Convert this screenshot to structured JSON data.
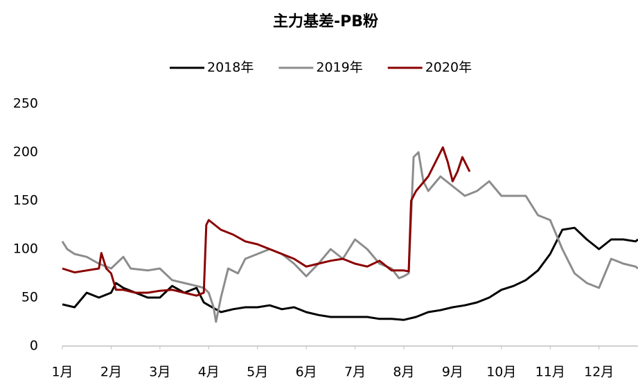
{
  "chart_data": {
    "type": "line",
    "title": "主力基差-PB粉",
    "xlim": [
      1,
      12.8
    ],
    "xticks": [
      {
        "value": 1,
        "label": "1月"
      },
      {
        "value": 2,
        "label": "2月"
      },
      {
        "value": 3,
        "label": "3月"
      },
      {
        "value": 4,
        "label": "4月"
      },
      {
        "value": 5,
        "label": "5月"
      },
      {
        "value": 6,
        "label": "6月"
      },
      {
        "value": 7,
        "label": "7月"
      },
      {
        "value": 8,
        "label": "8月"
      },
      {
        "value": 9,
        "label": "9月"
      },
      {
        "value": 10,
        "label": "10月"
      },
      {
        "value": 11,
        "label": "11月"
      },
      {
        "value": 12,
        "label": "12月"
      }
    ],
    "ylim": [
      0,
      250
    ],
    "yticks": [
      0,
      50,
      100,
      150,
      200,
      250
    ],
    "grid": false,
    "legend": "top",
    "series": [
      {
        "name": "2018年",
        "color": "#000000",
        "x": [
          1,
          1.25,
          1.5,
          1.75,
          2,
          2.1,
          2.25,
          2.5,
          2.75,
          3,
          3.25,
          3.5,
          3.75,
          3.9,
          4,
          4.25,
          4.5,
          4.75,
          5,
          5.25,
          5.5,
          5.75,
          6,
          6.25,
          6.5,
          6.75,
          7,
          7.25,
          7.5,
          7.75,
          8,
          8.25,
          8.5,
          8.75,
          9,
          9.25,
          9.5,
          9.75,
          10,
          10.25,
          10.5,
          10.75,
          11,
          11.25,
          11.5,
          11.75,
          12,
          12.25,
          12.5,
          12.75,
          12.8
        ],
        "values": [
          43,
          40,
          55,
          50,
          55,
          65,
          60,
          55,
          50,
          50,
          62,
          55,
          60,
          45,
          42,
          35,
          38,
          40,
          40,
          42,
          38,
          40,
          35,
          32,
          30,
          30,
          30,
          30,
          28,
          28,
          27,
          30,
          35,
          37,
          40,
          42,
          45,
          50,
          58,
          62,
          68,
          78,
          95,
          120,
          122,
          110,
          100,
          110,
          110,
          108,
          110
        ]
      },
      {
        "name": "2019年",
        "color": "#8c8c8c",
        "x": [
          1,
          1.1,
          1.25,
          1.5,
          1.75,
          2,
          2.25,
          2.4,
          2.75,
          3,
          3.25,
          3.5,
          3.75,
          3.9,
          4,
          4.1,
          4.15,
          4.25,
          4.4,
          4.6,
          4.75,
          5,
          5.25,
          5.5,
          5.75,
          6,
          6.25,
          6.5,
          6.75,
          7,
          7.25,
          7.5,
          7.75,
          7.9,
          8,
          8.1,
          8.2,
          8.3,
          8.4,
          8.5,
          8.75,
          9,
          9.25,
          9.5,
          9.75,
          10,
          10.25,
          10.5,
          10.75,
          11,
          11.25,
          11.5,
          11.75,
          12,
          12.25,
          12.5,
          12.75,
          12.8
        ],
        "values": [
          108,
          100,
          95,
          92,
          85,
          80,
          92,
          80,
          78,
          80,
          68,
          65,
          62,
          60,
          55,
          40,
          25,
          50,
          80,
          75,
          90,
          95,
          100,
          95,
          85,
          72,
          85,
          100,
          90,
          110,
          100,
          85,
          80,
          70,
          72,
          75,
          195,
          200,
          170,
          160,
          175,
          165,
          155,
          160,
          170,
          155,
          155,
          155,
          135,
          130,
          100,
          75,
          65,
          60,
          90,
          85,
          82,
          80
        ]
      },
      {
        "name": "2020年",
        "color": "#8b0000",
        "x": [
          1,
          1.25,
          1.5,
          1.75,
          1.8,
          1.9,
          2,
          2.1,
          2.25,
          2.5,
          2.75,
          3,
          3.25,
          3.5,
          3.75,
          3.9,
          3.95,
          4,
          4.25,
          4.5,
          4.75,
          5,
          5.25,
          5.5,
          5.75,
          6,
          6.25,
          6.5,
          6.75,
          7,
          7.25,
          7.5,
          7.75,
          8,
          8.1,
          8.15,
          8.25,
          8.5,
          8.75,
          8.8,
          8.9,
          9,
          9.1,
          9.2,
          9.35
        ],
        "values": [
          80,
          76,
          78,
          80,
          96,
          80,
          75,
          58,
          58,
          55,
          55,
          57,
          58,
          55,
          52,
          55,
          125,
          130,
          120,
          115,
          108,
          105,
          100,
          95,
          90,
          82,
          85,
          88,
          90,
          85,
          82,
          88,
          78,
          78,
          77,
          150,
          160,
          175,
          200,
          205,
          190,
          170,
          180,
          195,
          180
        ]
      }
    ]
  }
}
